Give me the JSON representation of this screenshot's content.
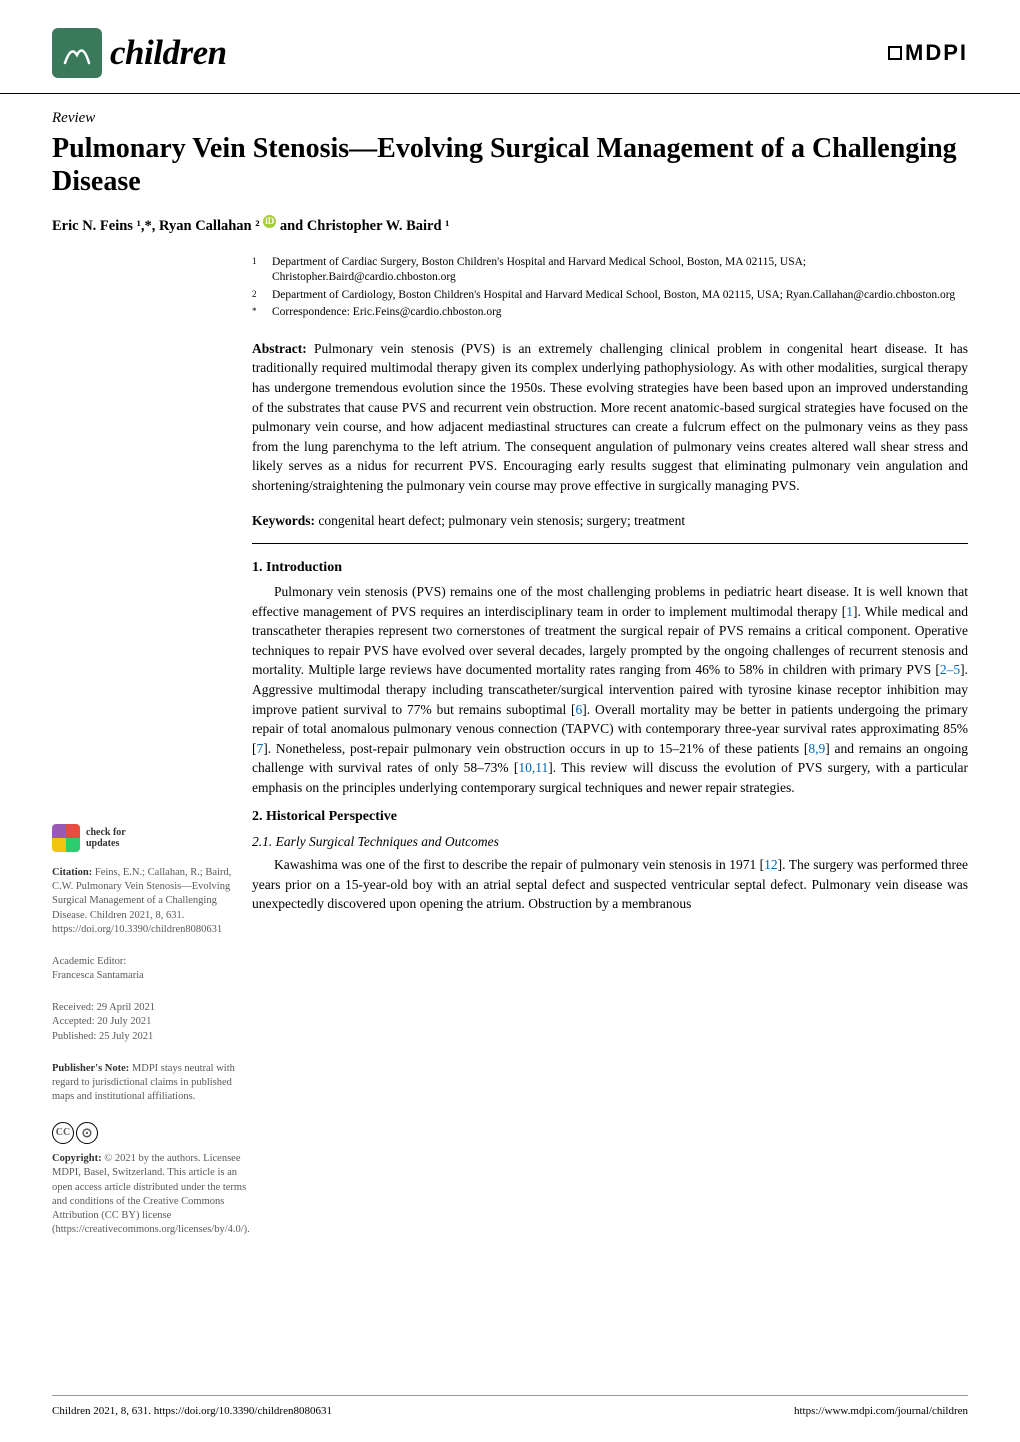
{
  "journal": {
    "name": "children",
    "icon_bg": "#3a7a5a",
    "publisher": "MDPI"
  },
  "article_type": "Review",
  "title": "Pulmonary Vein Stenosis—Evolving Surgical Management of a Challenging Disease",
  "authors_line": "Eric N. Feins ¹,*, Ryan Callahan ² ",
  "authors_tail": " and Christopher W. Baird ¹",
  "affiliations": [
    {
      "num": "1",
      "text": "Department of Cardiac Surgery, Boston Children's Hospital and Harvard Medical School, Boston, MA 02115, USA; Christopher.Baird@cardio.chboston.org"
    },
    {
      "num": "2",
      "text": "Department of Cardiology, Boston Children's Hospital and Harvard Medical School, Boston, MA 02115, USA; Ryan.Callahan@cardio.chboston.org"
    },
    {
      "num": "*",
      "text": "Correspondence: Eric.Feins@cardio.chboston.org"
    }
  ],
  "abstract": {
    "label": "Abstract:",
    "text": " Pulmonary vein stenosis (PVS) is an extremely challenging clinical problem in congenital heart disease. It has traditionally required multimodal therapy given its complex underlying pathophysiology. As with other modalities, surgical therapy has undergone tremendous evolution since the 1950s. These evolving strategies have been based upon an improved understanding of the substrates that cause PVS and recurrent vein obstruction. More recent anatomic-based surgical strategies have focused on the pulmonary vein course, and how adjacent mediastinal structures can create a fulcrum effect on the pulmonary veins as they pass from the lung parenchyma to the left atrium. The consequent angulation of pulmonary veins creates altered wall shear stress and likely serves as a nidus for recurrent PVS. Encouraging early results suggest that eliminating pulmonary vein angulation and shortening/straightening the pulmonary vein course may prove effective in surgically managing PVS."
  },
  "keywords": {
    "label": "Keywords:",
    "text": " congenital heart defect; pulmonary vein stenosis; surgery; treatment"
  },
  "section1": {
    "heading": "1. Introduction",
    "para": "Pulmonary vein stenosis (PVS) remains one of the most challenging problems in pediatric heart disease. It is well known that effective management of PVS requires an interdisciplinary team in order to implement multimodal therapy [1]. While medical and transcatheter therapies represent two cornerstones of treatment the surgical repair of PVS remains a critical component. Operative techniques to repair PVS have evolved over several decades, largely prompted by the ongoing challenges of recurrent stenosis and mortality. Multiple large reviews have documented mortality rates ranging from 46% to 58% in children with primary PVS [2–5]. Aggressive multimodal therapy including transcatheter/surgical intervention paired with tyrosine kinase receptor inhibition may improve patient survival to 77% but remains suboptimal [6]. Overall mortality may be better in patients undergoing the primary repair of total anomalous pulmonary venous connection (TAPVC) with contemporary three-year survival rates approximating 85% [7]. Nonetheless, post-repair pulmonary vein obstruction occurs in up to 15–21% of these patients [8,9] and remains an ongoing challenge with survival rates of only 58–73% [10,11]. This review will discuss the evolution of PVS surgery, with a particular emphasis on the principles underlying contemporary surgical techniques and newer repair strategies."
  },
  "section2": {
    "heading": "2. Historical Perspective",
    "sub": "2.1. Early Surgical Techniques and Outcomes",
    "para": "Kawashima was one of the first to describe the repair of pulmonary vein stenosis in 1971 [12]. The surgery was performed three years prior on a 15-year-old boy with an atrial septal defect and suspected ventricular septal defect. Pulmonary vein disease was unexpectedly discovered upon opening the atrium. Obstruction by a membranous"
  },
  "sidebar": {
    "check_updates": {
      "line1": "check for",
      "line2": "updates"
    },
    "citation": {
      "label": "Citation:",
      "text": " Feins, E.N.; Callahan, R.; Baird, C.W. Pulmonary Vein Stenosis—Evolving Surgical Management of a Challenging Disease. Children 2021, 8, 631. https://doi.org/10.3390/children8080631"
    },
    "academic_editor": {
      "label": "Academic Editor:",
      "value": "Francesca Santamaria"
    },
    "dates": {
      "received": "Received: 29 April 2021",
      "accepted": "Accepted: 20 July 2021",
      "published": "Published: 25 July 2021"
    },
    "publishers_note": {
      "label": "Publisher's Note:",
      "text": " MDPI stays neutral with regard to jurisdictional claims in published maps and institutional affiliations."
    },
    "copyright": {
      "label": "Copyright:",
      "text": " © 2021 by the authors. Licensee MDPI, Basel, Switzerland. This article is an open access article distributed under the terms and conditions of the Creative Commons Attribution (CC BY) license (https://creativecommons.org/licenses/by/4.0/)."
    }
  },
  "footer": {
    "left": "Children 2021, 8, 631. https://doi.org/10.3390/children8080631",
    "right": "https://www.mdpi.com/journal/children"
  },
  "colors": {
    "ref_link": "#0066b3",
    "sidebar_text": "#5a5a5a",
    "border": "#000000"
  }
}
